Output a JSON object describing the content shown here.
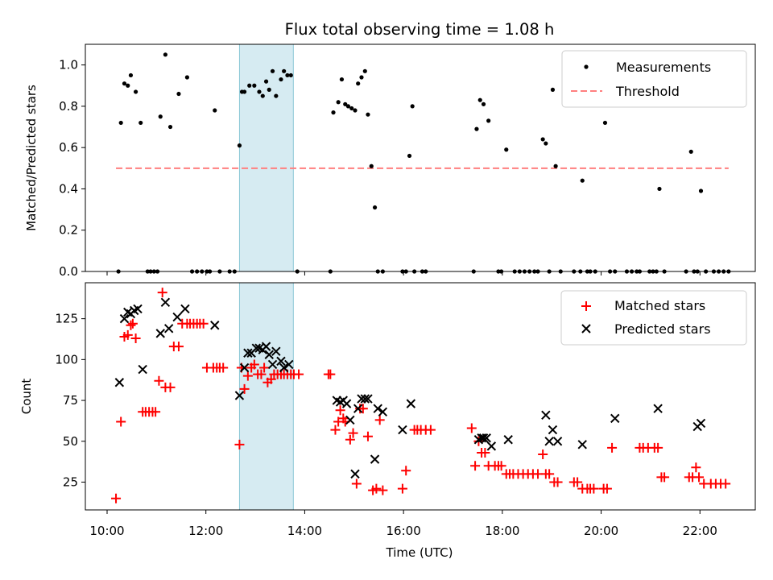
{
  "chart_data": [
    {
      "type": "scatter",
      "title": "Flux total observing time = 1.08 h",
      "xlabel": "",
      "ylabel": "Matched/Predicted stars",
      "xlim": [
        9.56,
        23.12
      ],
      "ylim": [
        0,
        1.1
      ],
      "y_ticks": [
        0.0,
        0.2,
        0.4,
        0.6,
        0.8,
        1.0
      ],
      "y_tick_labels": [
        "0.0",
        "0.2",
        "0.4",
        "0.6",
        "0.8",
        "1.0"
      ],
      "grid": false,
      "legend_position": "top-right",
      "highlight_span": [
        12.68,
        13.77
      ],
      "colors": {
        "measurements": "#000000",
        "threshold": "#ff7f7f",
        "span": "#add8e6"
      },
      "series": [
        {
          "name": "Measurements",
          "kind": "points",
          "x": [
            10.23,
            10.28,
            10.35,
            10.42,
            10.48,
            10.58,
            10.68,
            10.82,
            10.88,
            10.95,
            11.02,
            11.08,
            11.18,
            11.28,
            11.45,
            11.62,
            11.72,
            11.82,
            11.92,
            12.02,
            12.08,
            12.18,
            12.28,
            12.48,
            12.58,
            12.68,
            12.73,
            12.78,
            12.88,
            12.98,
            13.08,
            13.15,
            13.22,
            13.28,
            13.35,
            13.42,
            13.52,
            13.58,
            13.65,
            13.72,
            13.85,
            14.52,
            14.58,
            14.68,
            14.75,
            14.82,
            14.88,
            14.95,
            15.02,
            15.08,
            15.15,
            15.22,
            15.28,
            15.35,
            15.42,
            15.48,
            15.58,
            15.98,
            16.05,
            16.12,
            16.18,
            16.22,
            16.38,
            16.45,
            17.42,
            17.48,
            17.55,
            17.62,
            17.72,
            17.92,
            17.98,
            18.08,
            18.25,
            18.35,
            18.45,
            18.55,
            18.65,
            18.72,
            18.82,
            18.88,
            18.95,
            19.02,
            19.08,
            19.18,
            19.45,
            19.58,
            19.62,
            19.72,
            19.78,
            19.88,
            20.08,
            20.18,
            20.28,
            20.52,
            20.62,
            20.72,
            20.78,
            20.98,
            21.05,
            21.12,
            21.18,
            21.28,
            21.72,
            21.82,
            21.88,
            21.95,
            22.02,
            22.12,
            22.28,
            22.38,
            22.48,
            22.58
          ],
          "y": [
            0.0,
            0.72,
            0.91,
            0.9,
            0.95,
            0.87,
            0.72,
            0.0,
            0.0,
            0.0,
            0.0,
            0.75,
            1.05,
            0.7,
            0.86,
            0.94,
            0.0,
            0.0,
            0.0,
            0.0,
            0.0,
            0.78,
            0.0,
            0.0,
            0.0,
            0.61,
            0.87,
            0.87,
            0.9,
            0.9,
            0.87,
            0.85,
            0.92,
            0.88,
            0.97,
            0.85,
            0.93,
            0.97,
            0.95,
            0.95,
            0.0,
            0.0,
            0.77,
            0.82,
            0.93,
            0.81,
            0.8,
            0.79,
            0.78,
            0.91,
            0.94,
            0.97,
            0.76,
            0.51,
            0.31,
            0.0,
            0.0,
            0.0,
            0.0,
            0.56,
            0.8,
            0.0,
            0.0,
            0.0,
            0.0,
            0.69,
            0.83,
            0.81,
            0.73,
            0.0,
            0.0,
            0.59,
            0.0,
            0.0,
            0.0,
            0.0,
            0.0,
            0.0,
            0.64,
            0.62,
            0.0,
            0.88,
            0.51,
            0.0,
            0.0,
            0.0,
            0.44,
            0.0,
            0.0,
            0.0,
            0.72,
            0.0,
            0.0,
            0.0,
            0.0,
            0.0,
            0.0,
            0.0,
            0.0,
            0.0,
            0.4,
            0.0,
            0.0,
            0.58,
            0.0,
            0.0,
            0.39,
            0.0,
            0.0,
            0.0,
            0.0,
            0.0
          ]
        },
        {
          "name": "Threshold",
          "kind": "dashed-line",
          "x": [
            10.18,
            22.58
          ],
          "y": [
            0.5,
            0.5
          ]
        }
      ]
    },
    {
      "type": "scatter",
      "title": "",
      "xlabel": "Time (UTC)",
      "ylabel": "Count",
      "xlim": [
        9.56,
        23.12
      ],
      "ylim": [
        8,
        147
      ],
      "x_ticks": [
        10,
        12,
        14,
        16,
        18,
        20,
        22
      ],
      "x_tick_labels": [
        "10:00",
        "12:00",
        "14:00",
        "16:00",
        "18:00",
        "20:00",
        "22:00"
      ],
      "y_ticks": [
        25,
        50,
        75,
        100,
        125
      ],
      "y_tick_labels": [
        "25",
        "50",
        "75",
        "100",
        "125"
      ],
      "grid": false,
      "legend_position": "top-right",
      "highlight_span": [
        12.68,
        13.77
      ],
      "colors": {
        "matched": "#ff0000",
        "predicted": "#000000",
        "span": "#add8e6"
      },
      "series": [
        {
          "name": "Matched stars",
          "marker": "plus",
          "x": [
            10.18,
            10.28,
            10.35,
            10.42,
            10.48,
            10.52,
            10.58,
            10.72,
            10.78,
            10.85,
            10.92,
            10.98,
            11.05,
            11.12,
            11.18,
            11.28,
            11.35,
            11.45,
            11.52,
            11.62,
            11.68,
            11.75,
            11.82,
            11.88,
            11.95,
            12.02,
            12.15,
            12.22,
            12.28,
            12.35,
            12.68,
            12.72,
            12.78,
            12.85,
            12.92,
            12.98,
            13.05,
            13.12,
            13.18,
            13.25,
            13.32,
            13.38,
            13.45,
            13.52,
            13.58,
            13.65,
            13.72,
            13.78,
            13.88,
            14.48,
            14.52,
            14.62,
            14.68,
            14.72,
            14.78,
            14.82,
            14.92,
            14.98,
            15.05,
            15.12,
            15.18,
            15.28,
            15.38,
            15.45,
            15.52,
            15.58,
            15.98,
            16.05,
            16.22,
            16.28,
            16.35,
            16.45,
            16.55,
            17.38,
            17.45,
            17.52,
            17.58,
            17.65,
            17.72,
            17.85,
            17.92,
            17.98,
            18.08,
            18.15,
            18.22,
            18.32,
            18.42,
            18.52,
            18.62,
            18.72,
            18.82,
            18.88,
            18.95,
            19.05,
            19.12,
            19.45,
            19.52,
            19.62,
            19.72,
            19.78,
            19.85,
            20.05,
            20.12,
            20.22,
            20.78,
            20.85,
            20.95,
            21.08,
            21.15,
            21.22,
            21.28,
            21.78,
            21.85,
            21.92,
            21.98,
            22.08,
            22.22,
            22.32,
            22.42,
            22.52
          ],
          "y": [
            15,
            62,
            114,
            115,
            121,
            122,
            113,
            68,
            68,
            68,
            68,
            68,
            87,
            141,
            83,
            83,
            108,
            108,
            122,
            122,
            122,
            122,
            122,
            122,
            122,
            95,
            95,
            95,
            95,
            95,
            48,
            95,
            82,
            90,
            95,
            97,
            91,
            91,
            95,
            86,
            88,
            91,
            91,
            91,
            91,
            91,
            91,
            91,
            91,
            91,
            91,
            57,
            62,
            69,
            64,
            62,
            51,
            55,
            24,
            70,
            70,
            53,
            20,
            21,
            63,
            20,
            21,
            32,
            57,
            57,
            57,
            57,
            57,
            58,
            35,
            50,
            43,
            43,
            35,
            35,
            35,
            35,
            30,
            30,
            30,
            30,
            30,
            30,
            30,
            30,
            42,
            30,
            30,
            25,
            25,
            25,
            25,
            21,
            21,
            21,
            21,
            21,
            21,
            46,
            46,
            46,
            46,
            46,
            46,
            28,
            28,
            28,
            28,
            34,
            28,
            24,
            24,
            24,
            24,
            24
          ]
        },
        {
          "name": "Predicted stars",
          "marker": "cross",
          "x": [
            10.25,
            10.35,
            10.42,
            10.48,
            10.55,
            10.62,
            10.72,
            11.08,
            11.18,
            11.25,
            11.42,
            11.58,
            12.18,
            12.68,
            12.78,
            12.85,
            12.92,
            13.02,
            13.08,
            13.15,
            13.22,
            13.28,
            13.35,
            13.42,
            13.52,
            13.58,
            13.68,
            14.65,
            14.72,
            14.78,
            14.85,
            14.92,
            15.02,
            15.08,
            15.15,
            15.22,
            15.28,
            15.42,
            15.48,
            15.58,
            15.98,
            16.15,
            17.52,
            17.58,
            17.62,
            17.68,
            17.78,
            18.12,
            18.88,
            18.95,
            19.02,
            19.12,
            19.62,
            20.28,
            21.15,
            21.95,
            22.02
          ],
          "y": [
            86,
            125,
            129,
            128,
            130,
            131,
            94,
            116,
            135,
            119,
            126,
            131,
            121,
            78,
            95,
            104,
            104,
            107,
            107,
            106,
            108,
            103,
            97,
            105,
            99,
            95,
            97,
            75,
            74,
            75,
            73,
            63,
            30,
            70,
            76,
            76,
            76,
            39,
            70,
            68,
            57,
            73,
            51,
            52,
            52,
            52,
            47,
            51,
            66,
            50,
            57,
            50,
            48,
            64,
            70,
            59,
            61
          ]
        }
      ]
    }
  ]
}
